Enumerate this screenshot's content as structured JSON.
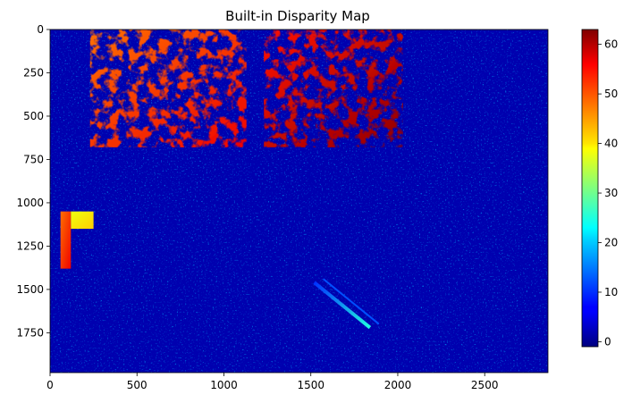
{
  "chart_data": {
    "type": "heatmap",
    "title": "Built-in Disparity Map",
    "colormap": "jet",
    "xlim": [
      0,
      2864
    ],
    "ylim": [
      1980,
      0
    ],
    "x_ticks": [
      0,
      500,
      1000,
      1500,
      2000,
      2500
    ],
    "y_ticks": [
      0,
      250,
      500,
      750,
      1000,
      1250,
      1500,
      1750
    ],
    "colorbar": {
      "range": [
        -1,
        63
      ],
      "ticks": [
        0,
        10,
        20,
        30,
        40,
        50,
        60
      ]
    },
    "background_value": 2,
    "regions": [
      {
        "name": "upper-left structure",
        "x": [
          230,
          1130
        ],
        "y": [
          0,
          680
        ],
        "value_range": [
          48,
          56
        ]
      },
      {
        "name": "upper-right structure",
        "x": [
          1230,
          2030
        ],
        "y": [
          0,
          680
        ],
        "value_range": [
          54,
          62
        ]
      },
      {
        "name": "left edge high",
        "x": [
          60,
          120
        ],
        "y": [
          1050,
          1380
        ],
        "value_range": [
          48,
          56
        ]
      },
      {
        "name": "left edge yellow",
        "x": [
          120,
          250
        ],
        "y": [
          1050,
          1150
        ],
        "value_range": [
          38,
          42
        ]
      },
      {
        "name": "diagonal streak",
        "x": [
          1520,
          1840
        ],
        "y": [
          1460,
          1720
        ],
        "value_range": [
          10,
          25
        ]
      }
    ],
    "grid": false,
    "legend": "none"
  }
}
